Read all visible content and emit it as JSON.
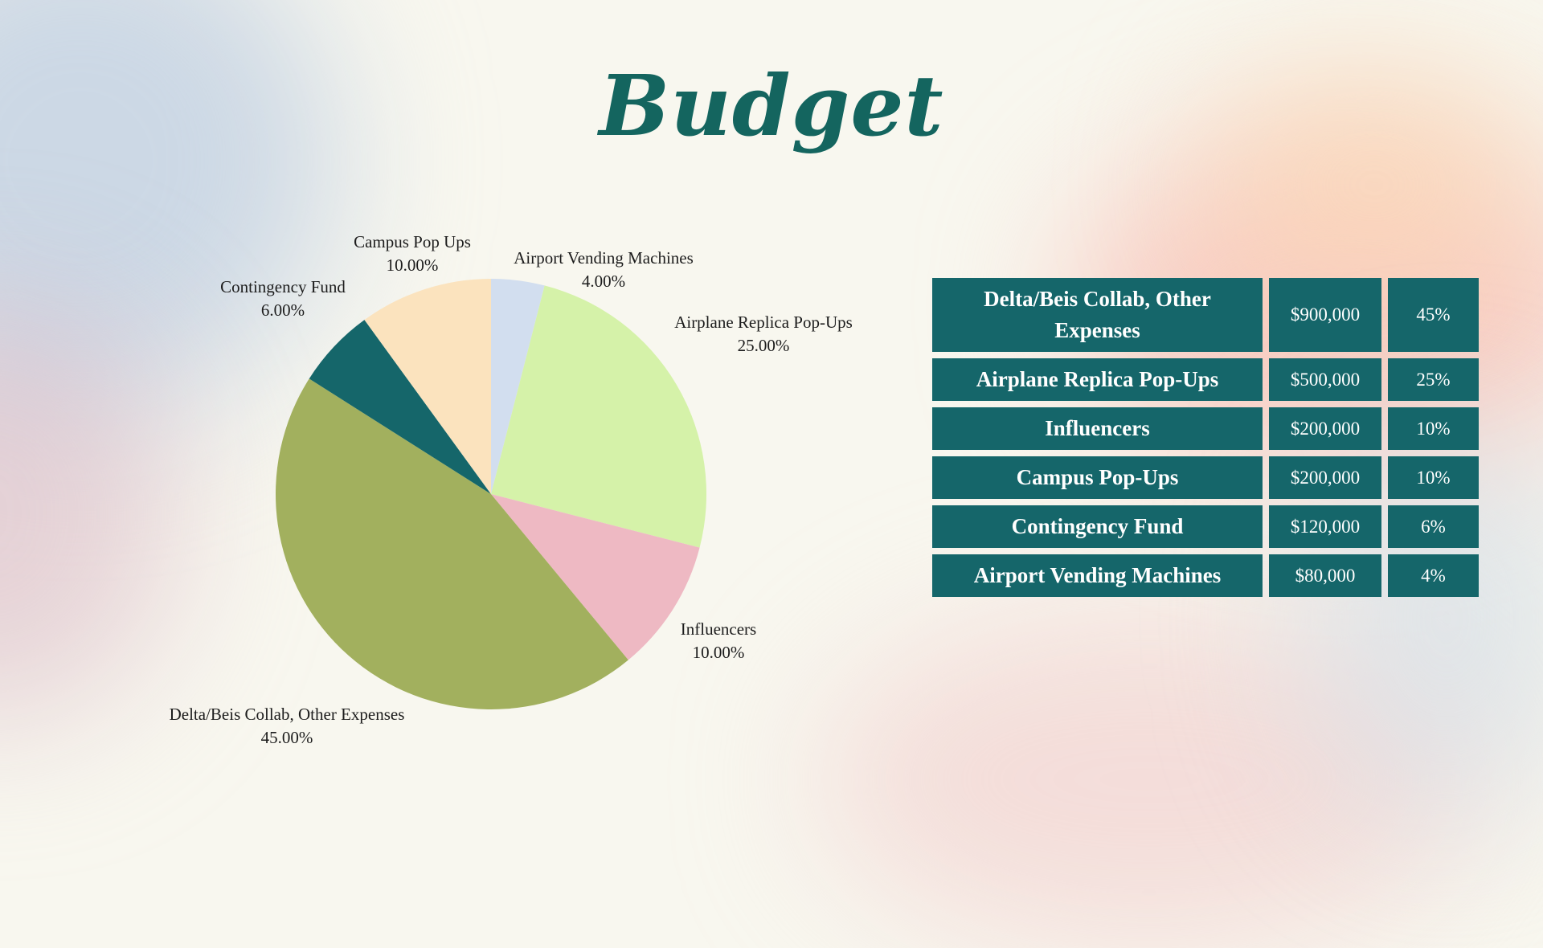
{
  "title": "Budget",
  "colors": {
    "title": "#14655f",
    "table_cell": "#15666a",
    "table_text": "#ffffff",
    "background": "#f8f7ef"
  },
  "chart_data": {
    "type": "pie",
    "slices": [
      {
        "label": "Airport Vending Machines",
        "value": 4.0,
        "display": "4.00%",
        "color": "#d2deef"
      },
      {
        "label": "Airplane Replica Pop-Ups",
        "value": 25.0,
        "display": "25.00%",
        "color": "#d5f2a9"
      },
      {
        "label": "Influencers",
        "value": 10.0,
        "display": "10.00%",
        "color": "#eeb9c3"
      },
      {
        "label": "Delta/Beis Collab, Other Expenses",
        "value": 45.0,
        "display": "45.00%",
        "color": "#a2b05e"
      },
      {
        "label": "Contingency Fund",
        "value": 6.0,
        "display": "6.00%",
        "color": "#15666a"
      },
      {
        "label": "Campus Pop Ups",
        "value": 10.0,
        "display": "10.00%",
        "color": "#fbe3be"
      }
    ]
  },
  "table": {
    "rows": [
      {
        "name": "Delta/Beis Collab, Other Expenses",
        "amount": "$900,000",
        "percent": "45%"
      },
      {
        "name": "Airplane Replica Pop-Ups",
        "amount": "$500,000",
        "percent": "25%"
      },
      {
        "name": "Influencers",
        "amount": "$200,000",
        "percent": "10%"
      },
      {
        "name": "Campus Pop-Ups",
        "amount": "$200,000",
        "percent": "10%"
      },
      {
        "name": "Contingency Fund",
        "amount": "$120,000",
        "percent": "6%"
      },
      {
        "name": "Airport Vending Machines",
        "amount": "$80,000",
        "percent": "4%"
      }
    ]
  }
}
